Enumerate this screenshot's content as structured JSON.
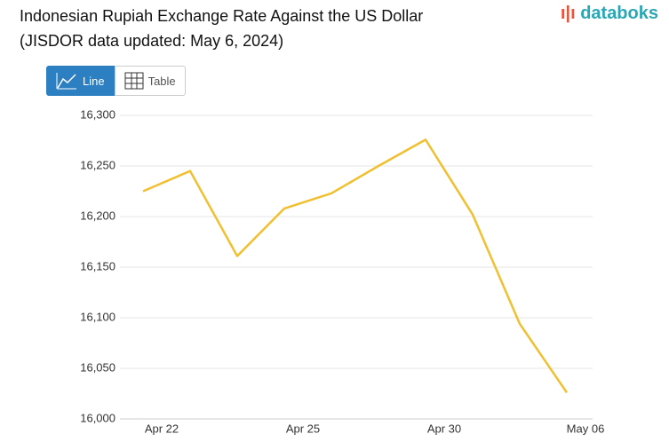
{
  "brand": "databoks",
  "buttons": [
    "Line",
    "Table"
  ],
  "chart_data": {
    "type": "line",
    "title": "Indonesian Rupiah Exchange Rate Against the US Dollar",
    "subtitle": "(JISDOR data updated: May 6, 2024)",
    "categories": [
      "Apr 22",
      null,
      null,
      "Apr 25",
      null,
      null,
      "Apr 30",
      null,
      null,
      "May 06"
    ],
    "values": [
      16225,
      16245,
      16161,
      16208,
      16223,
      16250,
      16276,
      16202,
      16094,
      16026
    ],
    "color": "#f0c030",
    "ylim": [
      16000,
      16300
    ],
    "yticks": [
      {
        "value": 16000,
        "label": "16,000"
      },
      {
        "value": 16050,
        "label": "16,050"
      },
      {
        "value": 16100,
        "label": "16,100"
      },
      {
        "value": 16150,
        "label": "16,150"
      },
      {
        "value": 16200,
        "label": "16,200"
      },
      {
        "value": 16250,
        "label": "16,250"
      },
      {
        "value": 16300,
        "label": "16,300"
      }
    ],
    "grid": true
  }
}
